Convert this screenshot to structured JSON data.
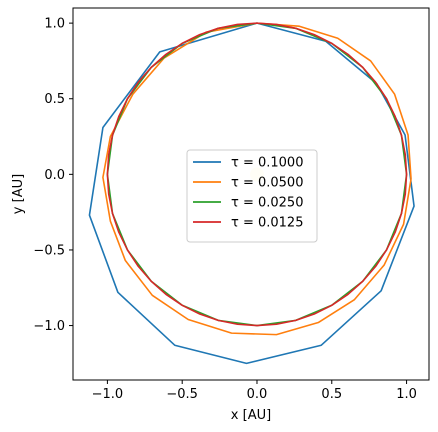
{
  "chart_data": {
    "type": "line",
    "title": "",
    "xlabel": "x [AU]",
    "ylabel": "y [AU]",
    "xlim": [
      -1.23,
      1.15
    ],
    "ylim": [
      -1.36,
      1.1
    ],
    "xticks": [
      -1.0,
      -0.5,
      0.0,
      0.5,
      1.0
    ],
    "xtick_labels": [
      "−1.0",
      "−0.5",
      "0.0",
      "0.5",
      "1.0"
    ],
    "yticks": [
      1.0,
      0.5,
      0.0,
      -0.5,
      -1.0
    ],
    "ytick_labels": [
      "1.0",
      "0.5",
      "0.0",
      "−0.5",
      "−1.0"
    ],
    "grid": false,
    "legend_position": "center",
    "sun_marker": {
      "x": 0.0,
      "y": 0.0,
      "color": "#fff7c2"
    },
    "series": [
      {
        "name": "τ = 0.1000",
        "color": "#1f77b4",
        "x": [
          0.0,
          -0.65,
          -1.03,
          -1.12,
          -0.93,
          -0.55,
          -0.07,
          0.43,
          0.83,
          1.05,
          0.99,
          0.8,
          0.46,
          0.0
        ],
        "y": [
          1.0,
          0.81,
          0.31,
          -0.27,
          -0.78,
          -1.13,
          -1.25,
          -1.13,
          -0.77,
          -0.21,
          0.26,
          0.6,
          0.88,
          1.0
        ]
      },
      {
        "name": "τ = 0.0500",
        "color": "#ff7f0e",
        "x": [
          0.0,
          -0.34,
          -0.62,
          -0.83,
          -0.98,
          -1.03,
          -0.98,
          -0.88,
          -0.7,
          -0.46,
          -0.17,
          0.13,
          0.41,
          0.65,
          0.85,
          0.98,
          1.03,
          1.01,
          0.92,
          0.76,
          0.54,
          0.28,
          0.0
        ],
        "y": [
          1.0,
          0.94,
          0.77,
          0.53,
          0.25,
          -0.02,
          -0.31,
          -0.57,
          -0.8,
          -0.96,
          -1.05,
          -1.06,
          -0.98,
          -0.83,
          -0.6,
          -0.33,
          -0.03,
          0.26,
          0.53,
          0.75,
          0.9,
          0.98,
          1.0
        ]
      },
      {
        "name": "τ = 0.0250",
        "color": "#2ca02c",
        "x": [
          0.0,
          -0.2588,
          -0.5,
          -0.7071,
          -0.866,
          -0.9659,
          -1.0,
          -0.9659,
          -0.866,
          -0.7071,
          -0.5,
          -0.2588,
          0.0,
          0.2588,
          0.5,
          0.7071,
          0.866,
          0.9659,
          1.0,
          0.9659,
          0.866,
          0.7071,
          0.5,
          0.2588,
          0.0
        ],
        "y": [
          1.0,
          0.9659,
          0.866,
          0.7071,
          0.5,
          0.2588,
          0.0,
          -0.2588,
          -0.5,
          -0.7071,
          -0.866,
          -0.9659,
          -1.0,
          -0.9659,
          -0.866,
          -0.7071,
          -0.5,
          -0.2588,
          0.0,
          0.2588,
          0.5,
          0.7071,
          0.866,
          0.9659,
          1.0
        ]
      },
      {
        "name": "τ = 0.0125",
        "color": "#d62728",
        "x": [
          0.0,
          -0.1305,
          -0.2588,
          -0.3827,
          -0.5,
          -0.6088,
          -0.7071,
          -0.7934,
          -0.866,
          -0.9239,
          -0.9659,
          -0.9914,
          -1.0,
          -0.9914,
          -0.9659,
          -0.9239,
          -0.866,
          -0.7934,
          -0.7071,
          -0.6088,
          -0.5,
          -0.3827,
          -0.2588,
          -0.1305,
          0.0,
          0.1305,
          0.2588,
          0.3827,
          0.5,
          0.6088,
          0.7071,
          0.7934,
          0.866,
          0.9239,
          0.9659,
          0.9914,
          1.0,
          0.9914,
          0.9659,
          0.9239,
          0.866,
          0.7934,
          0.7071,
          0.6088,
          0.5,
          0.3827,
          0.2588,
          0.1305,
          0.0
        ],
        "y": [
          1.0,
          0.9914,
          0.9659,
          0.9239,
          0.866,
          0.7934,
          0.7071,
          0.6088,
          0.5,
          0.3827,
          0.2588,
          0.1305,
          0.0,
          -0.1305,
          -0.2588,
          -0.3827,
          -0.5,
          -0.6088,
          -0.7071,
          -0.7934,
          -0.866,
          -0.9239,
          -0.9659,
          -0.9914,
          -1.0,
          -0.9914,
          -0.9659,
          -0.9239,
          -0.866,
          -0.7934,
          -0.7071,
          -0.6088,
          -0.5,
          -0.3827,
          -0.2588,
          -0.1305,
          0.0,
          0.1305,
          0.2588,
          0.3827,
          0.5,
          0.6088,
          0.7071,
          0.7934,
          0.866,
          0.9239,
          0.9659,
          0.9914,
          1.0
        ]
      }
    ]
  }
}
